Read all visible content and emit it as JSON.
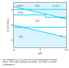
{
  "chart_data": {
    "type": "line",
    "xlabel": "pH",
    "ylabel": "E (V/ENH)",
    "xlim": [
      0,
      14
    ],
    "ylim": [
      -1.5,
      1.5
    ],
    "xticks": [
      0,
      7,
      14
    ],
    "yticks": [
      -1,
      0,
      1
    ],
    "grid": false,
    "series": [
      {
        "x": [
          0,
          14
        ],
        "values": [
          1.23,
          0.42
        ],
        "color": "#00cfff"
      },
      {
        "x": [
          0,
          14
        ],
        "values": [
          0.0,
          -0.83
        ],
        "color": "#00cfff"
      },
      {
        "x": [
          0,
          14
        ],
        "values": [
          1.05,
          1.05
        ],
        "color": "#00cfff"
      },
      {
        "x": [
          0,
          8.5
        ],
        "values": [
          0.68,
          0.68
        ],
        "color": "#00cfff"
      },
      {
        "x": [
          8.5,
          14
        ],
        "values": [
          0.52,
          0.52
        ],
        "color": "#00cfff"
      },
      {
        "x": [
          8.5,
          8.5
        ],
        "values": [
          0.52,
          0.68
        ],
        "color": "#00cfff"
      },
      {
        "x": [
          0,
          14
        ],
        "values": [
          -0.15,
          -0.15
        ],
        "color": "#00cfff"
      }
    ],
    "areas": [
      {
        "x": [
          0,
          14
        ],
        "y1": [
          1.23,
          0.42
        ],
        "y2": 1.5,
        "color": "#c8f0ff"
      },
      {
        "x": [
          0,
          14
        ],
        "y1": -1.5,
        "y2": [
          0.0,
          -0.83
        ],
        "color": "#c8f0ff"
      }
    ],
    "annotations": [
      {
        "text": "CNO⁻",
        "x": 1.8,
        "y": 1.27
      },
      {
        "text": "NH₃",
        "x": 6.5,
        "y": 1.27
      },
      {
        "text": "C₂O₄²⁻",
        "x": 11.5,
        "y": 1.27
      },
      {
        "text": "HCN",
        "x": 1.8,
        "y": 0.84
      },
      {
        "text": "CN⁻",
        "x": 6.5,
        "y": 0.28
      },
      {
        "text": "CN⁻",
        "x": 2.0,
        "y": -0.8
      }
    ],
    "line_labels": [
      {
        "text": "a",
        "x": 13.5,
        "y": 0.5
      },
      {
        "text": "b",
        "x": 13.5,
        "y": -0.73
      }
    ],
    "caption": [
      "The straight lines (a) and (b) are the thermodynamic Section",
      "(RHE) : Reversible Hydrogen Electrode ; Electrode reversible",
      "à hydrogène)"
    ]
  }
}
